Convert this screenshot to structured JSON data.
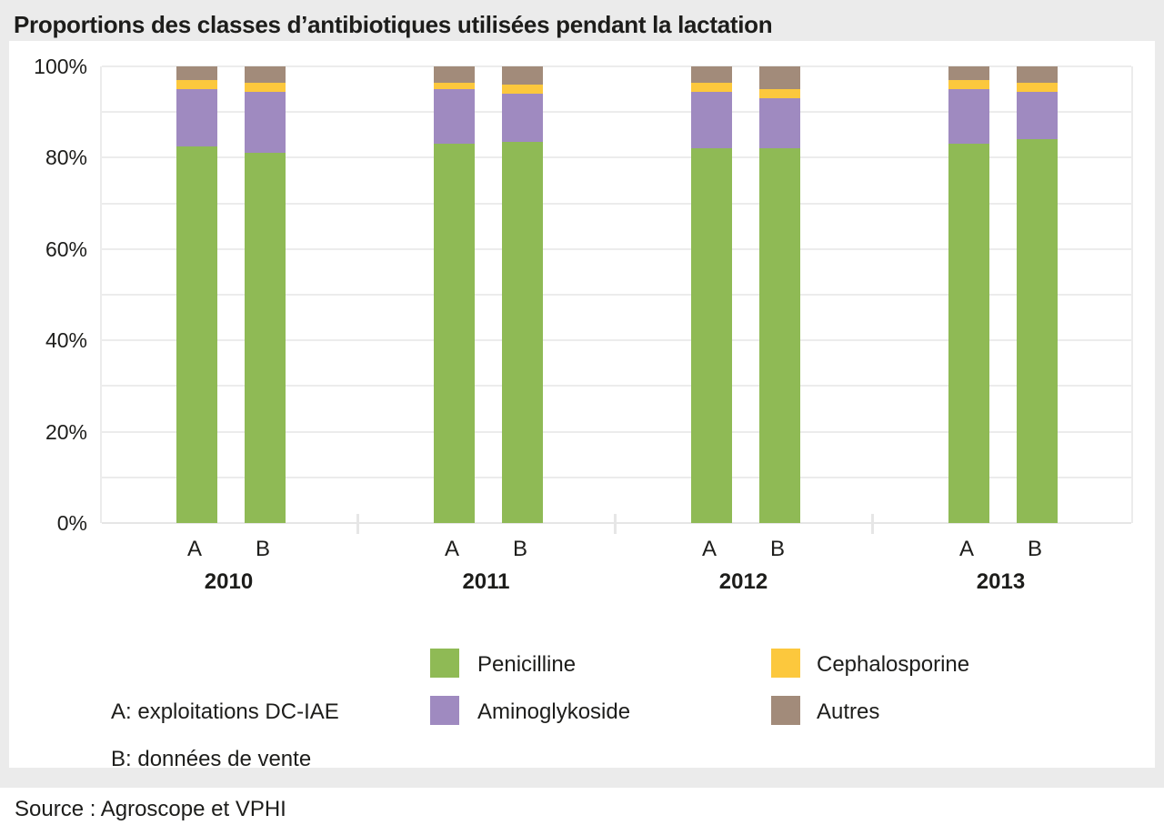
{
  "title": "Proportions des classes d’antibiotiques utilisées pendant la lactation",
  "source": "Source : Agroscope et VPHI",
  "colors": {
    "penicilline": "#8fba55",
    "aminoglykoside": "#9f8ac0",
    "cephalosporine": "#fcc83d",
    "autres": "#a28b7a",
    "background": "#ebebeb",
    "grid": "#ececec"
  },
  "chart_data": {
    "type": "bar",
    "stacked": true,
    "title": "Proportions des classes d’antibiotiques utilisées pendant la lactation",
    "unit": "%",
    "ylim": [
      0,
      100
    ],
    "yticks": [
      0,
      20,
      40,
      60,
      80,
      100
    ],
    "grid_step": 10,
    "grid": true,
    "legend_position": "bottom",
    "categories": [
      "2010",
      "2011",
      "2012",
      "2013"
    ],
    "bar_labels": [
      "A",
      "B"
    ],
    "series": [
      {
        "name": "Penicilline",
        "color": "#8fba55",
        "values": [
          [
            82.5,
            81.0
          ],
          [
            83.0,
            83.5
          ],
          [
            82.0,
            82.0
          ],
          [
            83.0,
            84.0
          ]
        ]
      },
      {
        "name": "Aminoglykoside",
        "color": "#9f8ac0",
        "values": [
          [
            12.5,
            13.5
          ],
          [
            12.0,
            10.5
          ],
          [
            12.5,
            11.0
          ],
          [
            12.0,
            10.5
          ]
        ]
      },
      {
        "name": "Cephalosporine",
        "color": "#fcc83d",
        "values": [
          [
            2.0,
            2.0
          ],
          [
            1.5,
            2.0
          ],
          [
            2.0,
            2.0
          ],
          [
            2.0,
            2.0
          ]
        ]
      },
      {
        "name": "Autres",
        "color": "#a28b7a",
        "values": [
          [
            3.0,
            3.5
          ],
          [
            3.5,
            4.0
          ],
          [
            3.5,
            5.0
          ],
          [
            3.0,
            3.5
          ]
        ]
      }
    ]
  },
  "legend": {
    "notes": [
      {
        "label": "A: exploitations DC-IAE"
      },
      {
        "label": "B: données de vente"
      }
    ],
    "classes": [
      {
        "label": "Penicilline",
        "color_key": "penicilline"
      },
      {
        "label": "Aminoglykoside",
        "color_key": "aminoglykoside"
      },
      {
        "label": "Cephalosporine",
        "color_key": "cephalosporine"
      },
      {
        "label": "Autres",
        "color_key": "autres"
      }
    ]
  }
}
